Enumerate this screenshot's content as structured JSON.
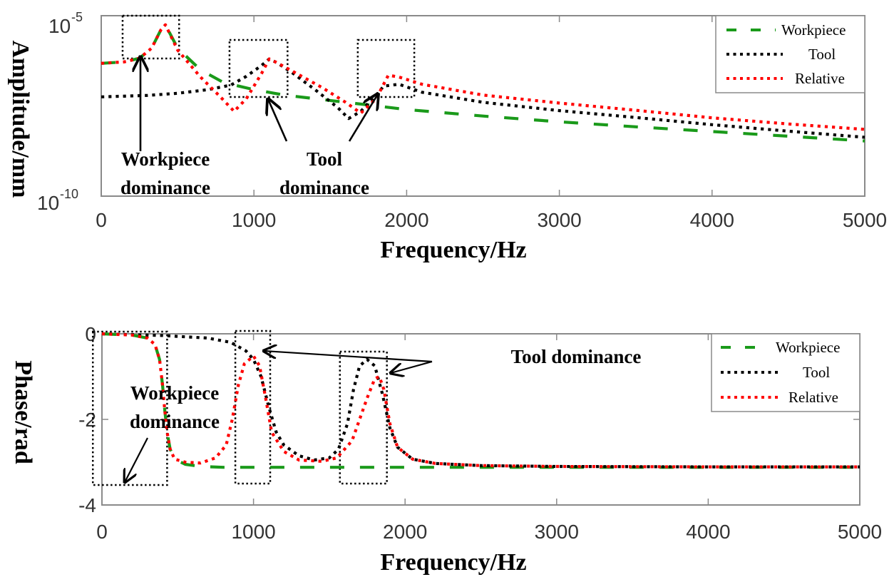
{
  "colors": {
    "workpiece": "#1a9a1a",
    "tool": "#000000",
    "relative": "#ff0000",
    "axis": "#8a8a8a"
  },
  "chart_data": [
    {
      "type": "line",
      "title": "",
      "xlabel": "Frequency/Hz",
      "ylabel": "Amplitude/mm",
      "xlim": [
        0,
        5000
      ],
      "yscale": "log",
      "ylim": [
        1e-10,
        1e-05
      ],
      "xticks": [
        "0",
        "1000",
        "2000",
        "3000",
        "4000",
        "5000"
      ],
      "xtick_values": [
        0,
        1000,
        2000,
        3000,
        4000,
        5000
      ],
      "yticks": [
        {
          "base": "10",
          "exp": "-5",
          "value": 1e-05
        },
        {
          "base": "10",
          "exp": "-10",
          "value": 1e-10
        }
      ],
      "legend": {
        "position": "top-right",
        "entries": [
          "Workpiece",
          "Tool",
          "Relative"
        ]
      },
      "series": [
        {
          "name": "Workpiece",
          "style": "dashed",
          "x": [
            0,
            150,
            250,
            330,
            390,
            420,
            500,
            650,
            800,
            1000,
            1200,
            1500,
            1800,
            2000,
            2500,
            3000,
            3500,
            4000,
            4500,
            5000
          ],
          "log10_y": [
            -6.32,
            -6.28,
            -6.18,
            -5.9,
            -5.4,
            -5.25,
            -5.9,
            -6.5,
            -6.85,
            -7.05,
            -7.2,
            -7.35,
            -7.5,
            -7.6,
            -7.78,
            -7.94,
            -8.08,
            -8.21,
            -8.34,
            -8.47
          ]
        },
        {
          "name": "Tool",
          "style": "dotted",
          "x": [
            0,
            300,
            500,
            700,
            850,
            950,
            1050,
            1100,
            1150,
            1250,
            1400,
            1550,
            1620,
            1700,
            1800,
            1850,
            1950,
            2100,
            2500,
            3000,
            3500,
            4000,
            4500,
            5000
          ],
          "log10_y": [
            -7.25,
            -7.21,
            -7.15,
            -7.05,
            -6.92,
            -6.68,
            -6.38,
            -6.2,
            -6.3,
            -6.58,
            -7.05,
            -7.55,
            -7.85,
            -7.65,
            -7.2,
            -6.95,
            -6.9,
            -7.12,
            -7.4,
            -7.63,
            -7.82,
            -8.02,
            -8.2,
            -8.37
          ]
        },
        {
          "name": "Relative",
          "style": "dotted",
          "x": [
            0,
            150,
            250,
            330,
            390,
            420,
            500,
            650,
            780,
            870,
            950,
            1050,
            1100,
            1150,
            1300,
            1450,
            1600,
            1700,
            1800,
            1880,
            1950,
            2100,
            2500,
            3000,
            3500,
            4000,
            4500,
            5000
          ],
          "log10_y": [
            -6.32,
            -6.28,
            -6.18,
            -5.9,
            -5.4,
            -5.25,
            -5.95,
            -6.7,
            -7.25,
            -7.65,
            -7.3,
            -6.6,
            -6.2,
            -6.3,
            -6.65,
            -7.0,
            -7.4,
            -7.7,
            -7.3,
            -6.65,
            -6.7,
            -6.9,
            -7.2,
            -7.42,
            -7.62,
            -7.83,
            -8.0,
            -8.15
          ]
        }
      ],
      "annotations": [
        {
          "lines": [
            "Workpiece",
            "dominance"
          ],
          "points_to_hz": 260
        },
        {
          "lines": [
            "Tool",
            "dominance"
          ],
          "points_to_hz": [
            1100,
            1800
          ]
        }
      ],
      "highlight_boxes_hz": [
        [
          140,
          510
        ],
        [
          840,
          1220
        ],
        [
          1680,
          2050
        ]
      ]
    },
    {
      "type": "line",
      "title": "",
      "xlabel": "Frequency/Hz",
      "ylabel": "Phase/rad",
      "xlim": [
        0,
        5000
      ],
      "ylim": [
        -4,
        0
      ],
      "xticks": [
        "0",
        "1000",
        "2000",
        "3000",
        "4000",
        "5000"
      ],
      "xtick_values": [
        0,
        1000,
        2000,
        3000,
        4000,
        5000
      ],
      "yticks": [
        "0",
        "-2",
        "-4"
      ],
      "ytick_values": [
        0,
        -2,
        -4
      ],
      "legend": {
        "position": "top-right",
        "entries": [
          "Workpiece",
          "Tool",
          "Relative"
        ]
      },
      "series": [
        {
          "name": "Workpiece",
          "style": "dashed",
          "x": [
            0,
            200,
            300,
            350,
            380,
            400,
            415,
            430,
            450,
            480,
            550,
            650,
            800,
            1200,
            2000,
            3000,
            4000,
            5000
          ],
          "y": [
            0,
            -0.03,
            -0.1,
            -0.25,
            -0.6,
            -1.2,
            -1.8,
            -2.3,
            -2.7,
            -2.93,
            -3.05,
            -3.1,
            -3.12,
            -3.12,
            -3.12,
            -3.12,
            -3.12,
            -3.12
          ]
        },
        {
          "name": "Tool",
          "style": "dotted",
          "x": [
            0,
            400,
            700,
            850,
            950,
            1000,
            1050,
            1100,
            1150,
            1200,
            1300,
            1400,
            1500,
            1560,
            1620,
            1660,
            1700,
            1750,
            1800,
            1850,
            1900,
            1950,
            2050,
            2200,
            2500,
            3000,
            4000,
            5000
          ],
          "y": [
            0,
            -0.04,
            -0.1,
            -0.2,
            -0.4,
            -0.6,
            -1.0,
            -1.7,
            -2.3,
            -2.6,
            -2.85,
            -2.95,
            -2.9,
            -2.7,
            -2.1,
            -1.3,
            -0.75,
            -0.6,
            -0.75,
            -1.4,
            -2.2,
            -2.65,
            -2.93,
            -3.03,
            -3.08,
            -3.1,
            -3.11,
            -3.11
          ]
        },
        {
          "name": "Relative",
          "style": "dotted",
          "x": [
            0,
            200,
            300,
            350,
            380,
            400,
            415,
            430,
            450,
            480,
            550,
            650,
            750,
            820,
            860,
            900,
            940,
            1000,
            1040,
            1080,
            1120,
            1200,
            1300,
            1450,
            1550,
            1650,
            1700,
            1750,
            1800,
            1830,
            1860,
            1900,
            1950,
            2050,
            2200,
            2500,
            3000,
            4000,
            5000
          ],
          "y": [
            0,
            -0.03,
            -0.1,
            -0.25,
            -0.6,
            -1.2,
            -1.8,
            -2.3,
            -2.7,
            -2.93,
            -3.0,
            -3.02,
            -2.9,
            -2.6,
            -2.0,
            -1.2,
            -0.7,
            -0.52,
            -0.75,
            -1.5,
            -2.3,
            -2.75,
            -2.95,
            -2.98,
            -2.9,
            -2.5,
            -2.0,
            -1.5,
            -1.05,
            -1.0,
            -1.3,
            -2.1,
            -2.65,
            -2.93,
            -3.03,
            -3.08,
            -3.1,
            -3.11,
            -3.11
          ]
        }
      ],
      "annotations": [
        {
          "lines": [
            "Workpiece",
            "dominance"
          ],
          "points_to_hz": 100
        },
        {
          "lines": [
            "Tool dominance"
          ],
          "points_to_hz": [
            1100,
            1850
          ]
        }
      ],
      "highlight_boxes_hz": [
        [
          -60,
          430
        ],
        [
          880,
          1110
        ],
        [
          1570,
          1880
        ]
      ]
    }
  ]
}
